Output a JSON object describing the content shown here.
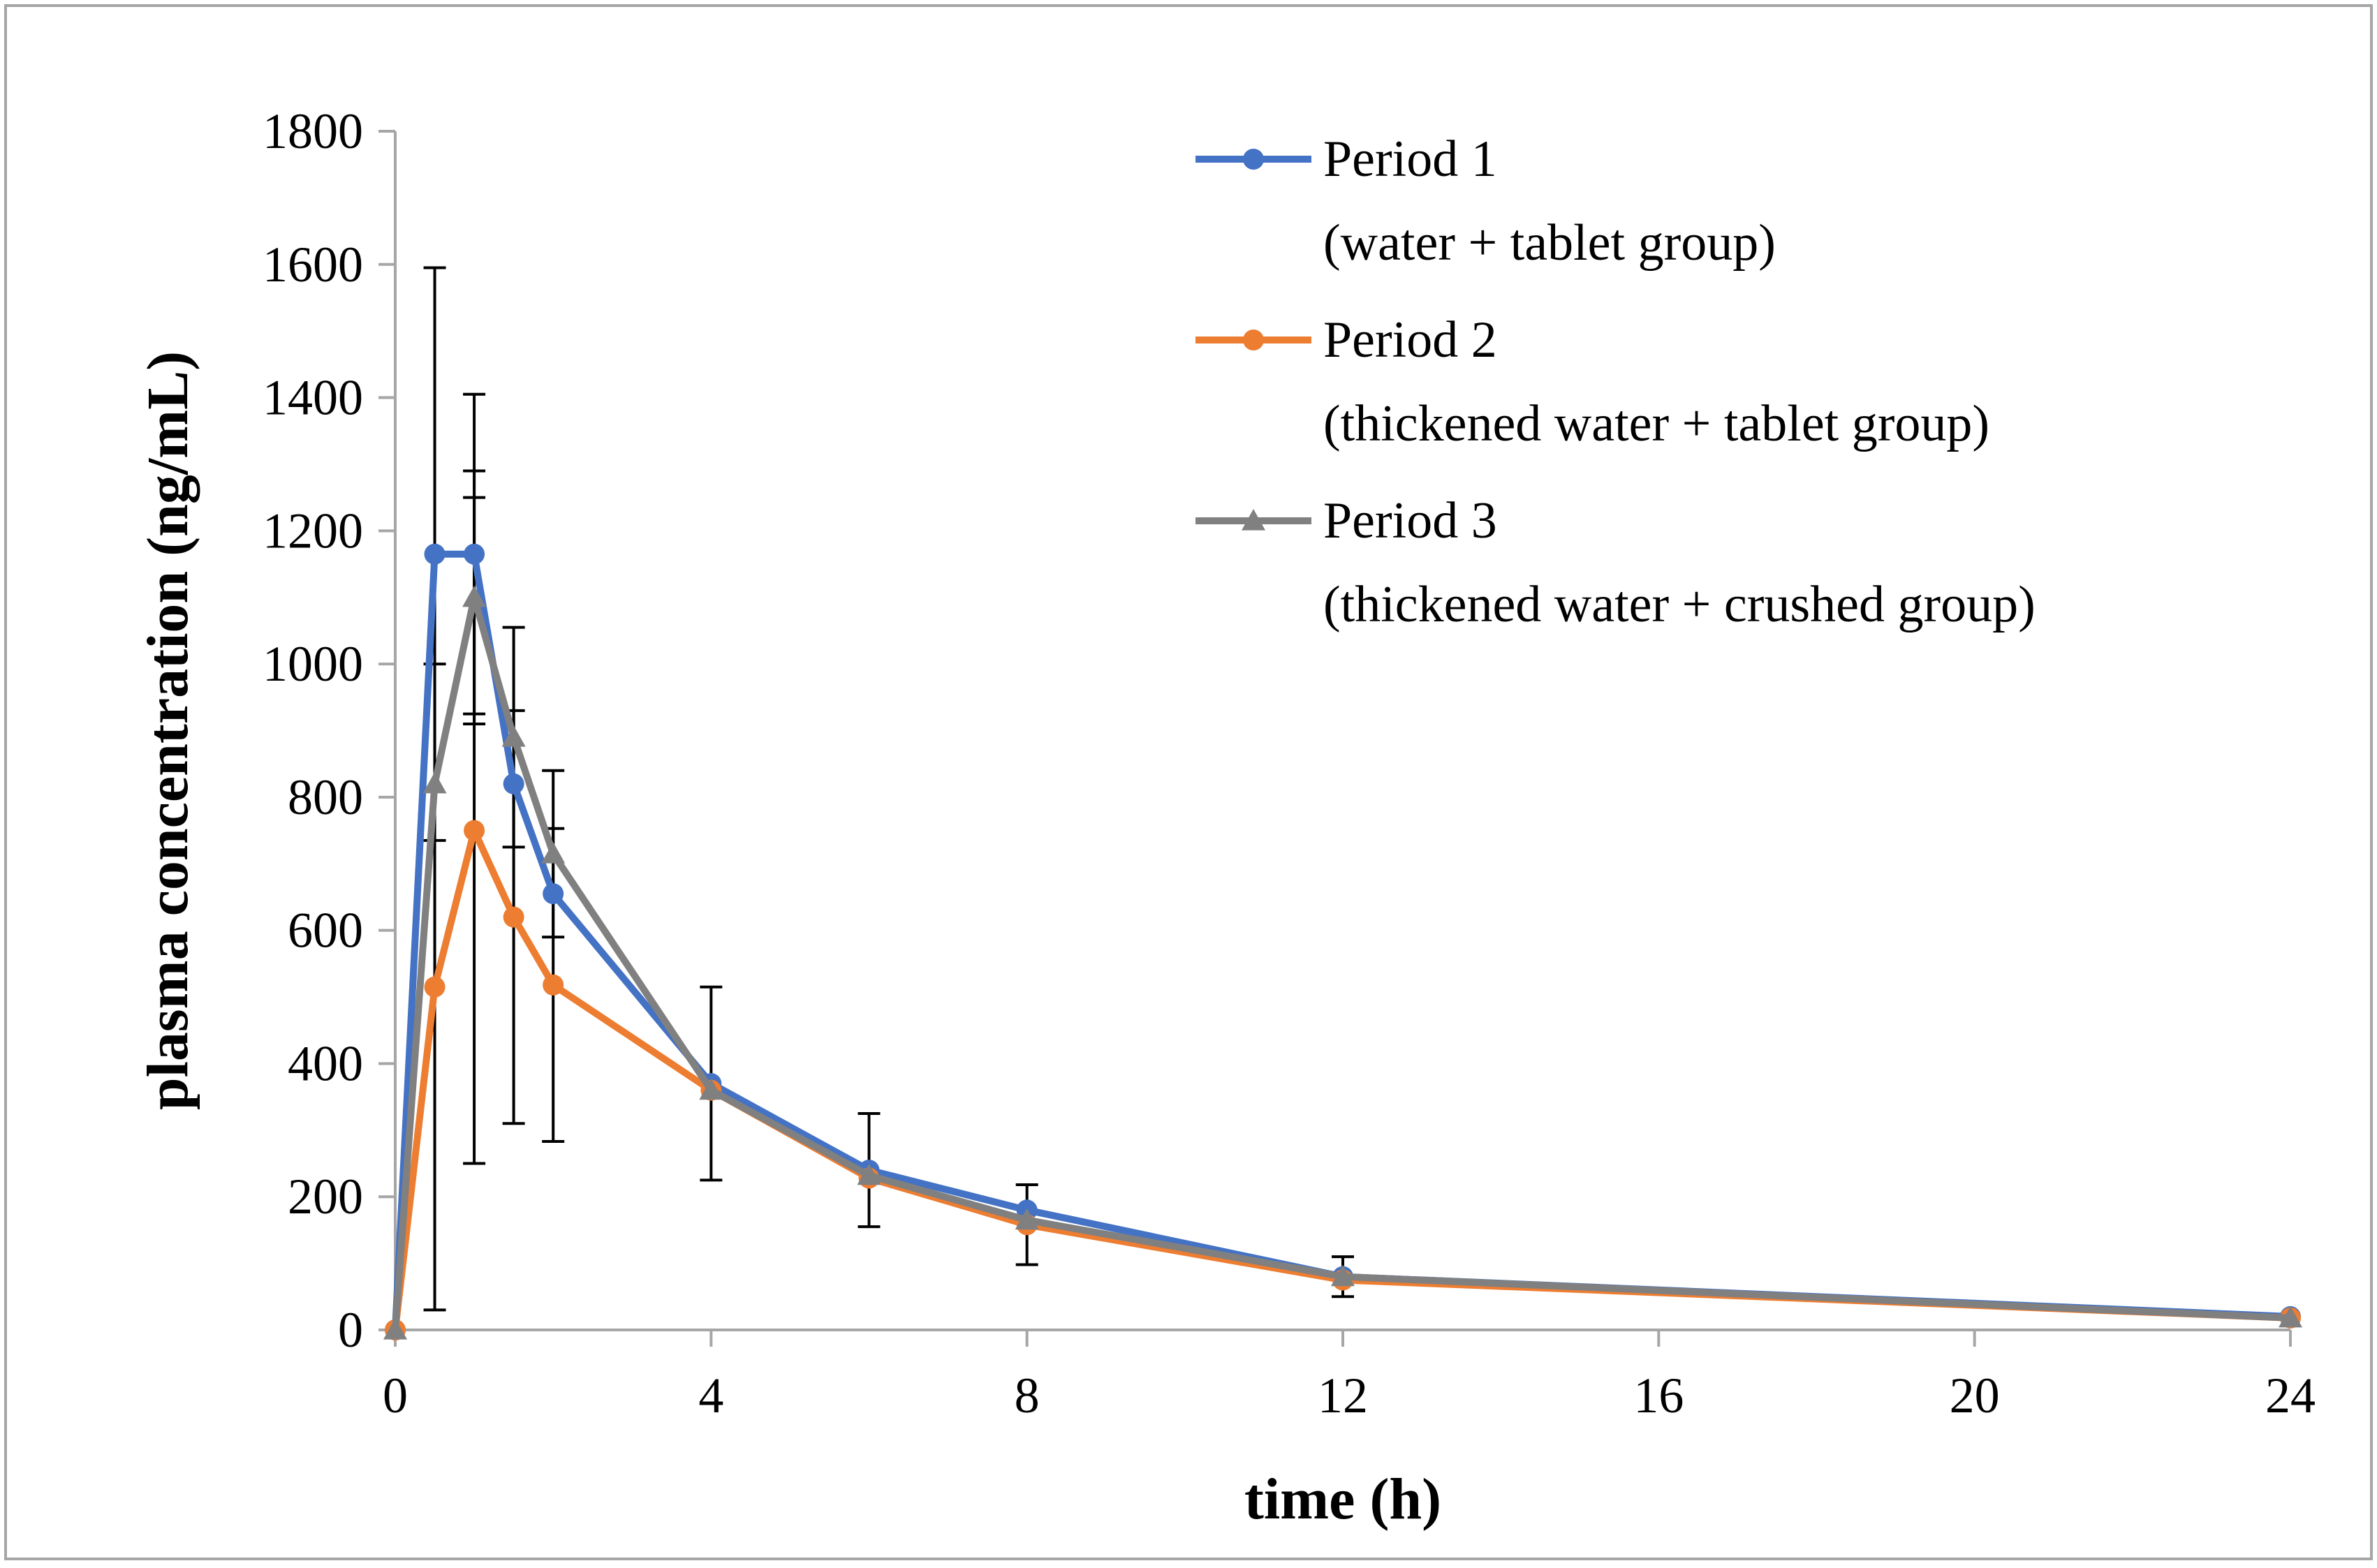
{
  "chart_data": {
    "type": "line",
    "title": "",
    "xlabel": "time (h)",
    "ylabel": "plasma concentration (ng/mL)",
    "xlim": [
      0,
      24
    ],
    "ylim": [
      0,
      1800
    ],
    "xticks": [
      0,
      4,
      8,
      12,
      16,
      20,
      24
    ],
    "yticks": [
      0,
      200,
      400,
      600,
      800,
      1000,
      1200,
      1400,
      1600,
      1800
    ],
    "grid": false,
    "legend_position": "top-right",
    "x": [
      0,
      0.5,
      1,
      1.5,
      2,
      4,
      6,
      8,
      12,
      24
    ],
    "series": [
      {
        "name": "Period 1",
        "group": "(water + tablet group)",
        "color": "#4472C4",
        "marker": "circle",
        "values": [
          0,
          1165,
          1165,
          820,
          655,
          370,
          240,
          180,
          80,
          20
        ],
        "error": [
          0,
          430,
          240,
          0,
          0,
          145,
          85,
          0,
          30,
          0
        ]
      },
      {
        "name": "Period 2",
        "group": "(thickened water + tablet group)",
        "color": "#ED7D31",
        "marker": "circle",
        "values": [
          0,
          515,
          750,
          620,
          518,
          360,
          228,
          158,
          75,
          18
        ],
        "error": [
          0,
          485,
          500,
          310,
          235,
          0,
          0,
          60,
          0,
          0
        ]
      },
      {
        "name": "Period 3",
        "group": "(thickened water + crushed group)",
        "color": "#808080",
        "marker": "triangle",
        "values": [
          0,
          820,
          1100,
          890,
          715,
          360,
          232,
          165,
          80,
          18
        ],
        "error": [
          0,
          0,
          190,
          165,
          125,
          0,
          0,
          0,
          0,
          0
        ]
      }
    ]
  }
}
